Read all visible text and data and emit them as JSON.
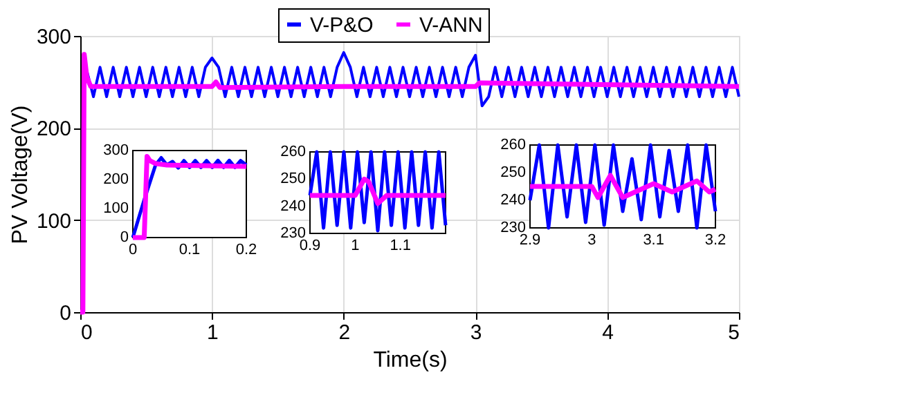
{
  "chart_data": [
    {
      "type": "line",
      "xlabel": "Time(s)",
      "ylabel": "PV Voltage(V)",
      "xlim": [
        0,
        5
      ],
      "ylim": [
        0,
        300
      ],
      "xticks": [
        0,
        1,
        2,
        3,
        4,
        5
      ],
      "yticks": [
        0,
        100,
        200,
        300
      ],
      "grid": true,
      "legend": "top",
      "series": [
        {
          "name": "V-P&O",
          "color": "#0000ff",
          "x": [
            0.05,
            0.1,
            0.15,
            0.2,
            0.25,
            0.3,
            0.35,
            0.4,
            0.45,
            0.5,
            0.55,
            0.6,
            0.65,
            0.7,
            0.75,
            0.8,
            0.85,
            0.9,
            0.95,
            1,
            1.05,
            1.1,
            1.15,
            1.2,
            1.25,
            1.3,
            1.35,
            1.4,
            1.45,
            1.5,
            1.55,
            1.6,
            1.65,
            1.7,
            1.75,
            1.8,
            1.85,
            1.9,
            1.95,
            2,
            2.05,
            2.1,
            2.15,
            2.2,
            2.25,
            2.3,
            2.35,
            2.4,
            2.45,
            2.5,
            2.55,
            2.6,
            2.65,
            2.7,
            2.75,
            2.8,
            2.85,
            2.9,
            2.95,
            3,
            3.05,
            3.1,
            3.15,
            3.2,
            3.25,
            3.3,
            3.35,
            3.4,
            3.45,
            3.5,
            3.55,
            3.6,
            3.65,
            3.7,
            3.75,
            3.8,
            3.85,
            3.9,
            3.95,
            4,
            4.05,
            4.1,
            4.15,
            4.2,
            4.25,
            4.3,
            4.35,
            4.4,
            4.45,
            4.5,
            4.55,
            4.6,
            4.65,
            4.7,
            4.75,
            4.8,
            4.85,
            4.9,
            4.95,
            5
          ],
          "values": [
            262,
            234,
            266,
            234,
            266,
            234,
            266,
            234,
            266,
            234,
            266,
            234,
            266,
            234,
            266,
            234,
            266,
            234,
            266,
            276,
            266,
            234,
            266,
            234,
            266,
            234,
            266,
            234,
            266,
            234,
            266,
            234,
            266,
            234,
            266,
            234,
            266,
            234,
            266,
            282,
            266,
            234,
            266,
            234,
            266,
            234,
            266,
            234,
            266,
            234,
            266,
            234,
            266,
            234,
            266,
            234,
            266,
            234,
            266,
            279,
            224,
            234,
            266,
            234,
            266,
            234,
            266,
            234,
            266,
            234,
            266,
            234,
            266,
            234,
            266,
            234,
            266,
            234,
            266,
            234,
            266,
            234,
            266,
            234,
            266,
            234,
            266,
            234,
            266,
            234,
            266,
            234,
            266,
            234,
            266,
            234,
            266,
            234,
            266,
            234
          ]
        },
        {
          "name": "V-ANN",
          "color": "#ff00ff",
          "x": [
            0,
            0.02,
            0.03,
            0.05,
            0.08,
            0.15,
            1,
            1.03,
            1.06,
            2,
            3,
            3.03,
            5
          ],
          "values": [
            0,
            0,
            280,
            255,
            245,
            245,
            245,
            250,
            244,
            245,
            245,
            249,
            245
          ]
        }
      ]
    },
    {
      "type": "line",
      "xlim": [
        0,
        0.2
      ],
      "ylim": [
        0,
        300
      ],
      "xticks": [
        0,
        0.1,
        0.2
      ],
      "yticks": [
        0,
        100,
        200,
        300
      ],
      "series": [
        {
          "color": "#0000ff",
          "x": [
            0,
            0.02,
            0.04,
            0.05,
            0.06,
            0.07,
            0.08,
            0.09,
            0.1,
            0.11,
            0.12,
            0.13,
            0.14,
            0.15,
            0.16,
            0.17,
            0.18,
            0.19,
            0.2
          ],
          "values": [
            0,
            130,
            250,
            275,
            250,
            262,
            240,
            265,
            242,
            265,
            242,
            265,
            242,
            266,
            242,
            266,
            242,
            265,
            250
          ]
        },
        {
          "color": "#ff00ff",
          "x": [
            0,
            0.02,
            0.025,
            0.03,
            0.04,
            0.06,
            0.2
          ],
          "values": [
            0,
            0,
            280,
            265,
            255,
            250,
            245
          ]
        }
      ]
    },
    {
      "type": "line",
      "xlim": [
        0.9,
        1.2
      ],
      "ylim": [
        230,
        260
      ],
      "xticks": [
        0.9,
        1,
        1.1
      ],
      "yticks": [
        230,
        240,
        250,
        260
      ],
      "series": [
        {
          "color": "#0000ff",
          "x": [
            0.9,
            0.915,
            0.93,
            0.945,
            0.96,
            0.975,
            0.99,
            1.005,
            1.02,
            1.035,
            1.05,
            1.065,
            1.08,
            1.095,
            1.11,
            1.125,
            1.14,
            1.155,
            1.17,
            1.185,
            1.2
          ],
          "values": [
            244,
            260,
            232,
            260,
            233,
            260,
            232,
            260,
            234,
            260,
            231,
            260,
            233,
            260,
            232,
            260,
            233,
            260,
            232,
            260,
            233
          ]
        },
        {
          "color": "#ff00ff",
          "x": [
            0.9,
            1,
            1.02,
            1.03,
            1.05,
            1.07,
            1.2
          ],
          "values": [
            244,
            244,
            250,
            249,
            241,
            244,
            244
          ]
        }
      ]
    },
    {
      "type": "line",
      "xlim": [
        2.9,
        3.2
      ],
      "ylim": [
        230,
        260
      ],
      "xticks": [
        2.9,
        3,
        3.1,
        3.2
      ],
      "yticks": [
        230,
        240,
        250,
        260
      ],
      "series": [
        {
          "color": "#0000ff",
          "x": [
            2.9,
            2.915,
            2.93,
            2.945,
            2.96,
            2.975,
            2.99,
            3.005,
            3.02,
            3.035,
            3.05,
            3.065,
            3.08,
            3.095,
            3.11,
            3.125,
            3.14,
            3.155,
            3.17,
            3.185,
            3.2
          ],
          "values": [
            240,
            260,
            230,
            260,
            234,
            260,
            232,
            260,
            231,
            260,
            236,
            255,
            233,
            260,
            234,
            258,
            236,
            260,
            230,
            260,
            236
          ]
        },
        {
          "color": "#ff00ff",
          "x": [
            2.9,
            3,
            3.01,
            3.03,
            3.05,
            3.1,
            3.13,
            3.17,
            3.19,
            3.2
          ],
          "values": [
            245,
            245,
            241,
            249,
            241,
            246,
            243,
            247,
            243,
            244
          ]
        }
      ]
    }
  ]
}
